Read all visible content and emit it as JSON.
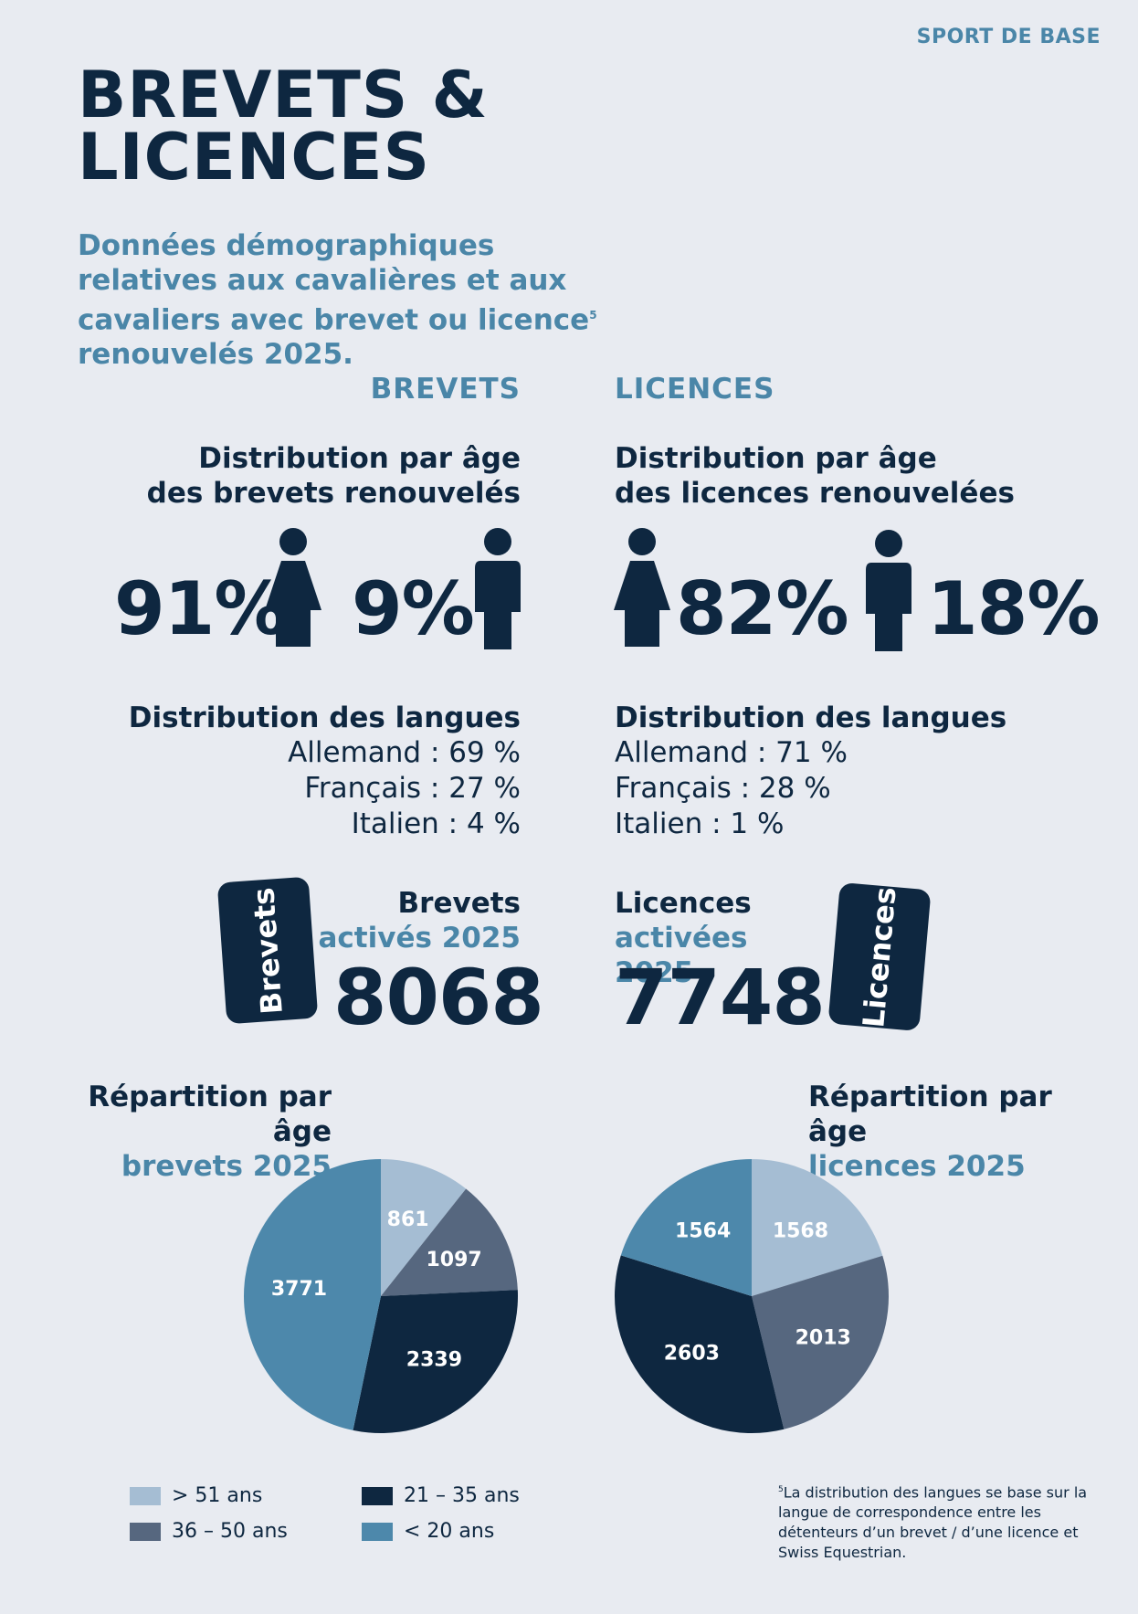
{
  "header": {
    "section_tag": "SPORT DE BASE",
    "title_line1": "BREVETS &",
    "title_line2": "LICENCES",
    "subtitle_line1": "Données démographiques",
    "subtitle_line2": "relatives aux cavalières et aux",
    "subtitle_line3": "cavaliers avec brevet ou licence",
    "subtitle_footnote_ref": "5",
    "subtitle_line4": "renouvelés 2025."
  },
  "brevets": {
    "column_title": "BREVETS",
    "age_dist_title_line1": "Distribution par âge",
    "age_dist_title_line2": "des brevets renouvelés",
    "female_pct": "91%",
    "male_pct": "9%",
    "lang_title": "Distribution des langues",
    "lang_de": "Allemand : 69 %",
    "lang_fr": "Français : 27 %",
    "lang_it": "Italien : 4 %",
    "card_label": "Brevets",
    "activated_label": "Brevets",
    "activated_sub": "activés 2025",
    "activated_count": "8068"
  },
  "licences": {
    "column_title": "LICENCES",
    "age_dist_title_line1": "Distribution par âge",
    "age_dist_title_line2": "des licences renouvelées",
    "female_pct": "82%",
    "male_pct": "18%",
    "lang_title": "Distribution des langues",
    "lang_de": "Allemand : 71 %",
    "lang_fr": "Français : 28 %",
    "lang_it": "Italien : 1 %",
    "card_label": "Licences",
    "activated_label": "Licences",
    "activated_sub": "activées 2025",
    "activated_count": "7748"
  },
  "repartition": {
    "brevets_title": "Répartition par âge",
    "brevets_sub": "brevets 2025",
    "licences_title": "Répartition par âge",
    "licences_sub": "licences 2025"
  },
  "legend": {
    "gt51": "> 51 ans",
    "r36_50": "36 – 50 ans",
    "r21_35": "21 – 35 ans",
    "lt20": "< 20 ans"
  },
  "footnote": {
    "ref": "5",
    "text": "La distribution des langues se base sur la langue de correspondence entre les détenteurs d’un brevet / d’une licence et Swiss Equestrian."
  },
  "colors": {
    "gt51": "#a5bdd3",
    "r36_50": "#56677f",
    "r21_35": "#0e2740",
    "lt20": "#4d88ab",
    "accent": "#4a86a8",
    "navy": "#0e2740"
  },
  "chart_data": [
    {
      "type": "pie",
      "title": "Répartition par âge brevets 2025",
      "categories": [
        "> 51 ans",
        "36 – 50 ans",
        "21 – 35 ans",
        "< 20 ans"
      ],
      "values": [
        861,
        1097,
        2339,
        3771
      ]
    },
    {
      "type": "pie",
      "title": "Répartition par âge licences 2025",
      "categories": [
        "> 51 ans",
        "36 – 50 ans",
        "21 – 35 ans",
        "< 20 ans"
      ],
      "values": [
        1568,
        2013,
        2603,
        1564
      ]
    }
  ]
}
